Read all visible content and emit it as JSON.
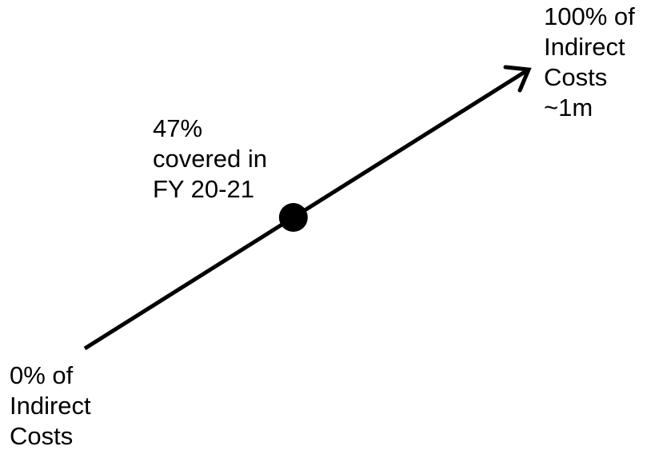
{
  "start_label": {
    "lines": [
      "0% of",
      "Indirect",
      "Costs"
    ]
  },
  "end_label": {
    "lines": [
      "100% of",
      "Indirect",
      "Costs",
      "~1m"
    ]
  },
  "marker_label": {
    "lines": [
      "47%",
      "covered in",
      "FY 20-21"
    ]
  },
  "progress": {
    "covered_fraction": 0.47
  },
  "colors": {
    "line": "#000000",
    "marker": "#000000",
    "text": "#000000",
    "background": "#ffffff"
  }
}
